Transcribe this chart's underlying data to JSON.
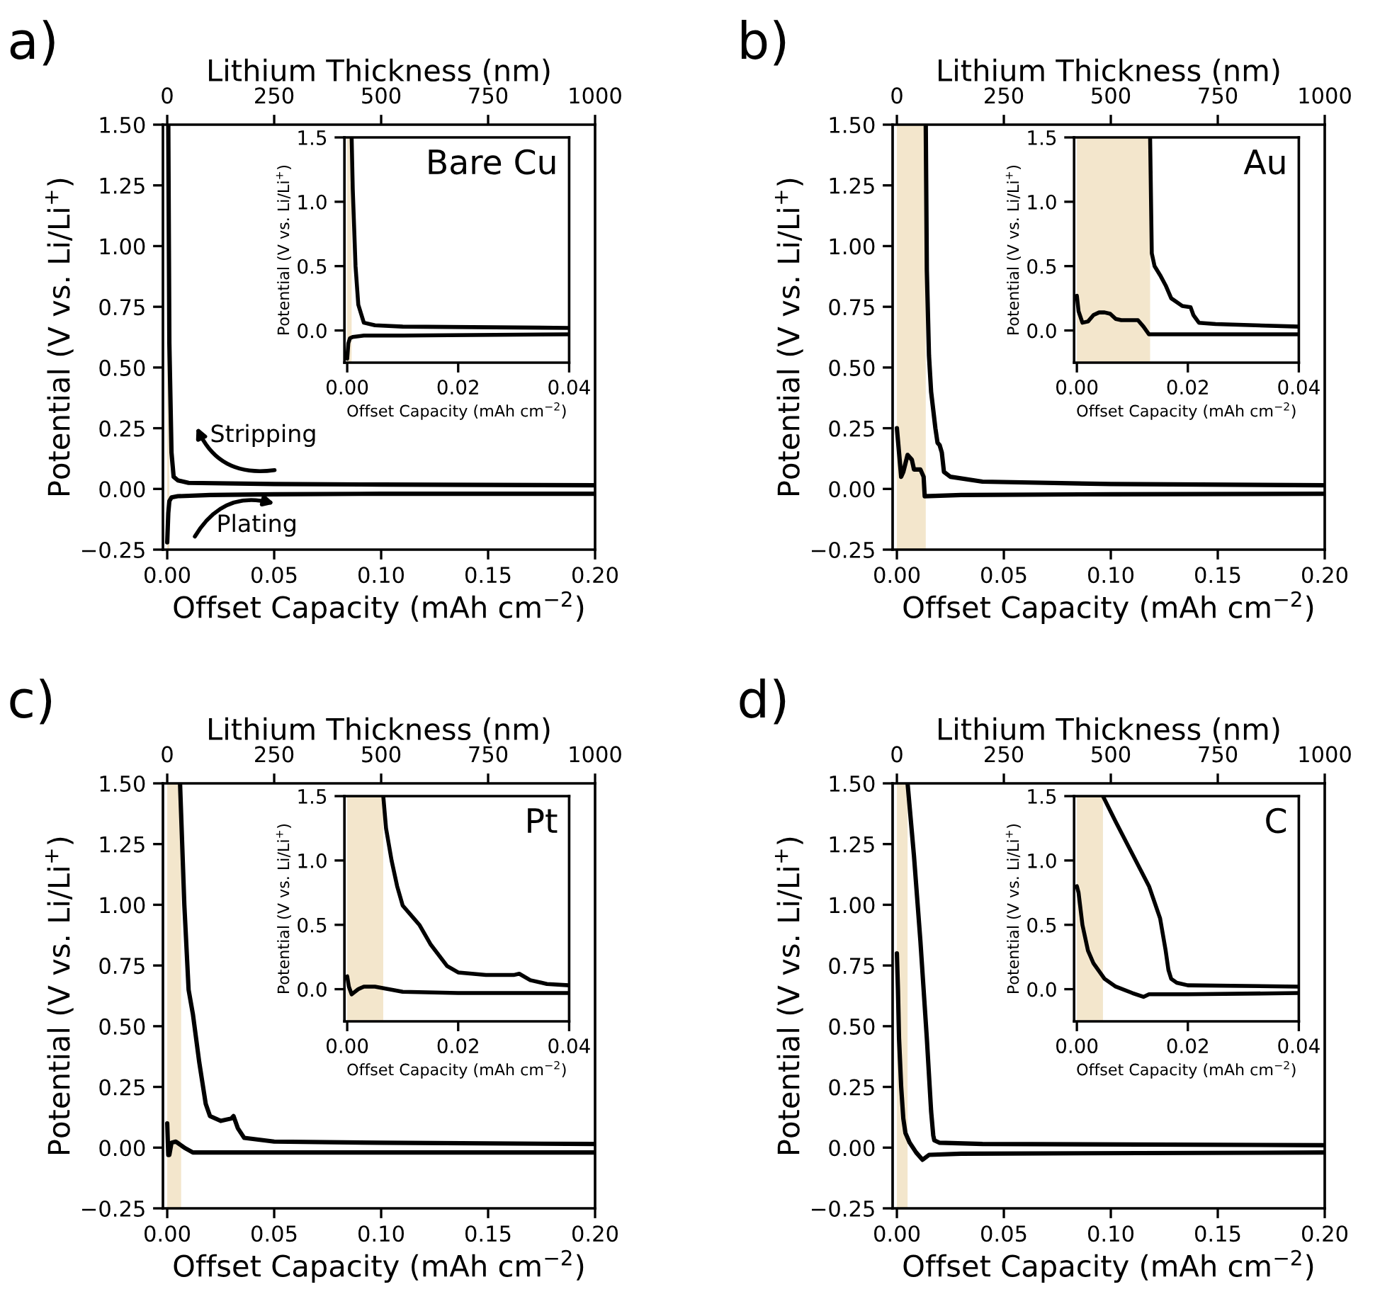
{
  "chart_data": [
    {
      "type": "line",
      "title": "a)",
      "xlabel": "Offset Capacity (mAh cm$^{−2}$)",
      "ylabel": "Potential (V vs. Li/Li$^{+}$)",
      "x2label": "Lithium Thickness (nm)",
      "xlim": [
        -0.002,
        0.2
      ],
      "xticks": [
        {
          "value": 0,
          "label": "0.00"
        },
        {
          "value": 0.05,
          "label": "0.05"
        },
        {
          "value": 0.1,
          "label": "0.10"
        },
        {
          "value": 0.15,
          "label": "0.15"
        },
        {
          "value": 0.2,
          "label": "0.20"
        }
      ],
      "x2lim": [
        -10,
        1000
      ],
      "x2ticks": [
        0,
        250,
        500,
        750,
        1000
      ],
      "ylim": [
        -0.25,
        1.5
      ],
      "yticks": [
        {
          "value": -0.25,
          "label": "−0.25"
        },
        {
          "value": 0,
          "label": "0.00"
        },
        {
          "value": 0.25,
          "label": "0.25"
        },
        {
          "value": 0.5,
          "label": "0.50"
        },
        {
          "value": 0.75,
          "label": "0.75"
        },
        {
          "value": 1,
          "label": "1.00"
        },
        {
          "value": 1.25,
          "label": "1.25"
        },
        {
          "value": 1.5,
          "label": "1.50"
        }
      ],
      "bands": [
        {
          "axis": "x",
          "from": 0,
          "to": 0.001,
          "color": "#f3e6cc"
        }
      ],
      "annotations": [
        "Stripping",
        "Plating"
      ],
      "series": [
        {
          "color": "#000000",
          "x": [
            0,
            0.0005,
            0.001,
            0.002,
            0.005,
            0.02,
            0.05,
            0.1,
            0.2
          ],
          "values": [
            -0.22,
            -0.1,
            -0.05,
            -0.035,
            -0.03,
            -0.025,
            -0.022,
            -0.02,
            -0.02
          ]
        },
        {
          "color": "#000000",
          "x": [
            0.0005,
            0.001,
            0.002,
            0.003,
            0.005,
            0.01,
            0.05,
            0.1,
            0.2
          ],
          "values": [
            1.5,
            0.6,
            0.15,
            0.05,
            0.035,
            0.025,
            0.02,
            0.018,
            0.015
          ]
        }
      ]
    },
    {
      "type": "line",
      "title": "Bare Cu",
      "xlabel": "Offset Capacity (mAh cm$^{−2}$)",
      "ylabel": "Potential (V vs. Li/Li$^{+}$)",
      "xlim": [
        -0.0005,
        0.04
      ],
      "xticks": [
        {
          "value": 0,
          "label": "0.00"
        },
        {
          "value": 0.02,
          "label": "0.02"
        },
        {
          "value": 0.04,
          "label": "0.04"
        }
      ],
      "ylim": [
        -0.25,
        1.5
      ],
      "yticks": [
        {
          "value": 0,
          "label": "0.0"
        },
        {
          "value": 0.5,
          "label": "0.5"
        },
        {
          "value": 1,
          "label": "1.0"
        },
        {
          "value": 1.5,
          "label": "1.5"
        }
      ],
      "bands": [
        {
          "axis": "x",
          "from": 0,
          "to": 0.0008,
          "color": "#f3e6cc"
        }
      ],
      "series": [
        {
          "color": "#000000",
          "x": [
            0,
            0.0002,
            0.0005,
            0.001,
            0.003,
            0.01,
            0.04
          ],
          "values": [
            -0.22,
            -0.1,
            -0.06,
            -0.05,
            -0.04,
            -0.04,
            -0.03
          ]
        },
        {
          "color": "#000000",
          "x": [
            0.0008,
            0.001,
            0.0015,
            0.002,
            0.003,
            0.005,
            0.01,
            0.04
          ],
          "values": [
            1.5,
            1.1,
            0.5,
            0.2,
            0.06,
            0.04,
            0.03,
            0.02
          ]
        }
      ]
    },
    {
      "type": "line",
      "title": "b)",
      "xlabel": "Offset Capacity (mAh cm$^{−2}$)",
      "ylabel": "Potential (V vs. Li/Li$^{+}$)",
      "x2label": "Lithium Thickness (nm)",
      "xlim": [
        -0.002,
        0.2
      ],
      "xticks": [
        {
          "value": 0,
          "label": "0.00"
        },
        {
          "value": 0.05,
          "label": "0.05"
        },
        {
          "value": 0.1,
          "label": "0.10"
        },
        {
          "value": 0.15,
          "label": "0.15"
        },
        {
          "value": 0.2,
          "label": "0.20"
        }
      ],
      "x2lim": [
        -10,
        1000
      ],
      "x2ticks": [
        0,
        250,
        500,
        750,
        1000
      ],
      "ylim": [
        -0.25,
        1.5
      ],
      "yticks": [
        {
          "value": -0.25,
          "label": "−0.25"
        },
        {
          "value": 0,
          "label": "0.00"
        },
        {
          "value": 0.25,
          "label": "0.25"
        },
        {
          "value": 0.5,
          "label": "0.50"
        },
        {
          "value": 0.75,
          "label": "0.75"
        },
        {
          "value": 1,
          "label": "1.00"
        },
        {
          "value": 1.25,
          "label": "1.25"
        },
        {
          "value": 1.5,
          "label": "1.50"
        }
      ],
      "bands": [
        {
          "axis": "x",
          "from": 0,
          "to": 0.0135,
          "color": "#f3e6cc"
        }
      ],
      "series": [
        {
          "color": "#000000",
          "x": [
            0,
            0.0005,
            0.002,
            0.003,
            0.005,
            0.007,
            0.008,
            0.011,
            0.0125,
            0.013,
            0.03,
            0.1,
            0.2
          ],
          "values": [
            0.25,
            0.2,
            0.05,
            0.07,
            0.14,
            0.12,
            0.08,
            0.08,
            0.05,
            -0.03,
            -0.025,
            -0.022,
            -0.02
          ]
        },
        {
          "color": "#000000",
          "x": [
            0.0135,
            0.014,
            0.015,
            0.016,
            0.018,
            0.019,
            0.02,
            0.021,
            0.022,
            0.025,
            0.04,
            0.1,
            0.2
          ],
          "values": [
            1.5,
            0.9,
            0.55,
            0.4,
            0.25,
            0.19,
            0.18,
            0.15,
            0.07,
            0.05,
            0.03,
            0.02,
            0.015
          ]
        }
      ]
    },
    {
      "type": "line",
      "title": "Au",
      "xlabel": "Offset Capacity (mAh cm$^{−2}$)",
      "ylabel": "Potential (V vs. Li/Li$^{+}$)",
      "xlim": [
        -0.0005,
        0.04
      ],
      "xticks": [
        {
          "value": 0,
          "label": "0.00"
        },
        {
          "value": 0.02,
          "label": "0.02"
        },
        {
          "value": 0.04,
          "label": "0.04"
        }
      ],
      "ylim": [
        -0.25,
        1.5
      ],
      "yticks": [
        {
          "value": 0,
          "label": "0.0"
        },
        {
          "value": 0.5,
          "label": "0.5"
        },
        {
          "value": 1,
          "label": "1.0"
        },
        {
          "value": 1.5,
          "label": "1.5"
        }
      ],
      "bands": [
        {
          "axis": "x",
          "from": 0,
          "to": 0.0132,
          "color": "#f3e6cc"
        }
      ],
      "series": [
        {
          "color": "#000000",
          "x": [
            0,
            0.0003,
            0.001,
            0.002,
            0.003,
            0.004,
            0.005,
            0.006,
            0.007,
            0.008,
            0.011,
            0.012,
            0.013,
            0.02,
            0.04
          ],
          "values": [
            0.27,
            0.15,
            0.06,
            0.07,
            0.12,
            0.14,
            0.14,
            0.13,
            0.09,
            0.08,
            0.08,
            0.03,
            -0.03,
            -0.03,
            -0.03
          ]
        },
        {
          "color": "#000000",
          "x": [
            0.0132,
            0.0135,
            0.014,
            0.015,
            0.016,
            0.017,
            0.019,
            0.0205,
            0.021,
            0.022,
            0.025,
            0.04
          ],
          "values": [
            1.5,
            0.6,
            0.5,
            0.43,
            0.35,
            0.25,
            0.19,
            0.18,
            0.12,
            0.06,
            0.05,
            0.03
          ]
        }
      ]
    },
    {
      "type": "line",
      "title": "c)",
      "xlabel": "Offset Capacity (mAh cm$^{−2}$)",
      "ylabel": "Potential (V vs. Li/Li$^{+}$)",
      "x2label": "Lithium Thickness (nm)",
      "xlim": [
        -0.002,
        0.2
      ],
      "xticks": [
        {
          "value": 0,
          "label": "0.00"
        },
        {
          "value": 0.05,
          "label": "0.05"
        },
        {
          "value": 0.1,
          "label": "0.10"
        },
        {
          "value": 0.15,
          "label": "0.15"
        },
        {
          "value": 0.2,
          "label": "0.20"
        }
      ],
      "x2lim": [
        -10,
        1000
      ],
      "x2ticks": [
        0,
        250,
        500,
        750,
        1000
      ],
      "ylim": [
        -0.25,
        1.5
      ],
      "yticks": [
        {
          "value": -0.25,
          "label": "−0.25"
        },
        {
          "value": 0,
          "label": "0.00"
        },
        {
          "value": 0.25,
          "label": "0.25"
        },
        {
          "value": 0.5,
          "label": "0.50"
        },
        {
          "value": 0.75,
          "label": "0.75"
        },
        {
          "value": 1,
          "label": "1.00"
        },
        {
          "value": 1.25,
          "label": "1.25"
        },
        {
          "value": 1.5,
          "label": "1.50"
        }
      ],
      "bands": [
        {
          "axis": "x",
          "from": 0,
          "to": 0.0065,
          "color": "#f3e6cc"
        }
      ],
      "series": [
        {
          "color": "#000000",
          "x": [
            0,
            0.0005,
            0.001,
            0.002,
            0.004,
            0.008,
            0.012,
            0.05,
            0.2
          ],
          "values": [
            0.1,
            -0.03,
            -0.03,
            0.02,
            0.025,
            0.0,
            -0.02,
            -0.02,
            -0.02
          ]
        },
        {
          "color": "#000000",
          "x": [
            0.006,
            0.008,
            0.01,
            0.012,
            0.015,
            0.018,
            0.02,
            0.025,
            0.03,
            0.031,
            0.033,
            0.036,
            0.05,
            0.1,
            0.2
          ],
          "values": [
            1.5,
            1.0,
            0.65,
            0.55,
            0.35,
            0.18,
            0.13,
            0.11,
            0.12,
            0.13,
            0.08,
            0.04,
            0.025,
            0.02,
            0.015
          ]
        }
      ]
    },
    {
      "type": "line",
      "title": "Pt",
      "xlabel": "Offset Capacity (mAh cm$^{−2}$)",
      "ylabel": "Potential (V vs. Li/Li$^{+}$)",
      "xlim": [
        -0.0005,
        0.04
      ],
      "xticks": [
        {
          "value": 0,
          "label": "0.00"
        },
        {
          "value": 0.02,
          "label": "0.02"
        },
        {
          "value": 0.04,
          "label": "0.04"
        }
      ],
      "ylim": [
        -0.25,
        1.5
      ],
      "yticks": [
        {
          "value": 0,
          "label": "0.0"
        },
        {
          "value": 0.5,
          "label": "0.5"
        },
        {
          "value": 1,
          "label": "1.0"
        },
        {
          "value": 1.5,
          "label": "1.5"
        }
      ],
      "bands": [
        {
          "axis": "x",
          "from": 0,
          "to": 0.0065,
          "color": "#f3e6cc"
        }
      ],
      "series": [
        {
          "color": "#000000",
          "x": [
            0,
            0.0003,
            0.0008,
            0.002,
            0.003,
            0.005,
            0.01,
            0.02,
            0.04
          ],
          "values": [
            0.1,
            0.02,
            -0.04,
            0.0,
            0.02,
            0.02,
            -0.02,
            -0.03,
            -0.03
          ]
        },
        {
          "color": "#000000",
          "x": [
            0.0065,
            0.007,
            0.008,
            0.009,
            0.01,
            0.012,
            0.013,
            0.015,
            0.018,
            0.02,
            0.025,
            0.03,
            0.031,
            0.033,
            0.036,
            0.04
          ],
          "values": [
            1.5,
            1.25,
            1.0,
            0.8,
            0.65,
            0.55,
            0.5,
            0.35,
            0.18,
            0.13,
            0.11,
            0.11,
            0.12,
            0.07,
            0.04,
            0.03
          ]
        }
      ]
    },
    {
      "type": "line",
      "title": "d)",
      "xlabel": "Offset Capacity (mAh cm$^{−2}$)",
      "ylabel": "Potential (V vs. Li/Li$^{+}$)",
      "x2label": "Lithium Thickness (nm)",
      "xlim": [
        -0.002,
        0.2
      ],
      "xticks": [
        {
          "value": 0,
          "label": "0.00"
        },
        {
          "value": 0.05,
          "label": "0.05"
        },
        {
          "value": 0.1,
          "label": "0.10"
        },
        {
          "value": 0.15,
          "label": "0.15"
        },
        {
          "value": 0.2,
          "label": "0.20"
        }
      ],
      "x2lim": [
        -10,
        1000
      ],
      "x2ticks": [
        0,
        250,
        500,
        750,
        1000
      ],
      "ylim": [
        -0.25,
        1.5
      ],
      "yticks": [
        {
          "value": -0.25,
          "label": "−0.25"
        },
        {
          "value": 0,
          "label": "0.00"
        },
        {
          "value": 0.25,
          "label": "0.25"
        },
        {
          "value": 0.5,
          "label": "0.50"
        },
        {
          "value": 0.75,
          "label": "0.75"
        },
        {
          "value": 1,
          "label": "1.00"
        },
        {
          "value": 1.25,
          "label": "1.25"
        },
        {
          "value": 1.5,
          "label": "1.50"
        }
      ],
      "bands": [
        {
          "axis": "x",
          "from": 0,
          "to": 0.005,
          "color": "#f3e6cc"
        }
      ],
      "series": [
        {
          "color": "#000000",
          "x": [
            0,
            0.0005,
            0.001,
            0.002,
            0.003,
            0.004,
            0.006,
            0.009,
            0.012,
            0.015,
            0.03,
            0.2
          ],
          "values": [
            0.8,
            0.65,
            0.45,
            0.25,
            0.12,
            0.06,
            0.02,
            -0.02,
            -0.05,
            -0.03,
            -0.025,
            -0.02
          ]
        },
        {
          "color": "#000000",
          "x": [
            0.005,
            0.008,
            0.011,
            0.014,
            0.016,
            0.017,
            0.0175,
            0.02,
            0.04,
            0.2
          ],
          "values": [
            1.5,
            1.2,
            0.85,
            0.45,
            0.15,
            0.05,
            0.03,
            0.02,
            0.015,
            0.01
          ]
        }
      ]
    },
    {
      "type": "line",
      "title": "C",
      "xlabel": "Offset Capacity (mAh cm$^{−2}$)",
      "ylabel": "Potential (V vs. Li/Li$^{+}$)",
      "xlim": [
        -0.0005,
        0.04
      ],
      "xticks": [
        {
          "value": 0,
          "label": "0.00"
        },
        {
          "value": 0.02,
          "label": "0.02"
        },
        {
          "value": 0.04,
          "label": "0.04"
        }
      ],
      "ylim": [
        -0.25,
        1.5
      ],
      "yticks": [
        {
          "value": 0,
          "label": "0.0"
        },
        {
          "value": 0.5,
          "label": "0.5"
        },
        {
          "value": 1,
          "label": "1.0"
        },
        {
          "value": 1.5,
          "label": "1.5"
        }
      ],
      "bands": [
        {
          "axis": "x",
          "from": 0,
          "to": 0.0047,
          "color": "#f3e6cc"
        }
      ],
      "series": [
        {
          "color": "#000000",
          "x": [
            0,
            0.0003,
            0.001,
            0.002,
            0.003,
            0.005,
            0.007,
            0.01,
            0.012,
            0.013,
            0.02,
            0.04
          ],
          "values": [
            0.8,
            0.75,
            0.5,
            0.3,
            0.2,
            0.08,
            0.02,
            -0.03,
            -0.06,
            -0.04,
            -0.04,
            -0.03
          ]
        },
        {
          "color": "#000000",
          "x": [
            0.0047,
            0.007,
            0.01,
            0.013,
            0.015,
            0.016,
            0.0165,
            0.017,
            0.018,
            0.02,
            0.04
          ],
          "values": [
            1.5,
            1.3,
            1.05,
            0.8,
            0.55,
            0.3,
            0.15,
            0.08,
            0.05,
            0.03,
            0.02
          ]
        }
      ]
    }
  ]
}
